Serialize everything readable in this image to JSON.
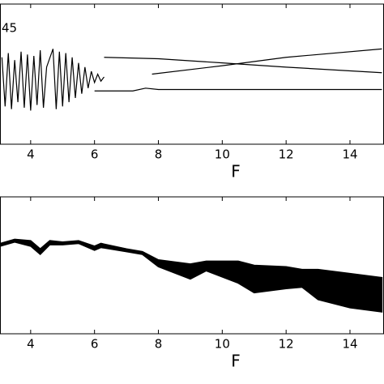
{
  "chart_data": [
    {
      "type": "line",
      "annotation": "45",
      "xlabel": "F",
      "xlim": [
        3.04,
        15.04
      ],
      "xticks": [
        4,
        6,
        8,
        10,
        12,
        14
      ],
      "ylim": [
        0,
        1
      ],
      "series": [
        {
          "color": "#000000",
          "x": [
            3.1,
            3.2,
            3.3,
            3.4,
            3.5,
            3.6,
            3.7,
            3.8,
            3.9,
            4.0,
            4.1,
            4.2,
            4.3,
            4.4,
            4.5,
            4.7,
            4.8,
            4.9,
            5.0,
            5.1,
            5.2,
            5.3,
            5.4,
            5.5,
            5.6,
            5.7,
            5.8,
            5.9,
            6.0,
            6.1,
            6.2,
            6.3
          ],
          "values": [
            0.62,
            0.27,
            0.65,
            0.25,
            0.6,
            0.3,
            0.66,
            0.26,
            0.64,
            0.24,
            0.63,
            0.28,
            0.67,
            0.26,
            0.55,
            0.68,
            0.25,
            0.66,
            0.27,
            0.65,
            0.3,
            0.62,
            0.33,
            0.58,
            0.36,
            0.55,
            0.4,
            0.52,
            0.44,
            0.5,
            0.45,
            0.48
          ]
        },
        {
          "color": "#000000",
          "x": [
            6.3,
            8,
            10,
            12,
            15
          ],
          "values": [
            0.62,
            0.61,
            0.58,
            0.55,
            0.51
          ]
        },
        {
          "color": "#000000",
          "x": [
            7.8,
            10,
            12,
            15
          ],
          "values": [
            0.5,
            0.56,
            0.62,
            0.68
          ]
        },
        {
          "color": "#000000",
          "x": [
            6,
            7.2,
            7.6,
            8,
            15
          ],
          "values": [
            0.38,
            0.38,
            0.4,
            0.39,
            0.39
          ]
        }
      ]
    },
    {
      "type": "area",
      "xlabel": "F",
      "color": "#000000",
      "xlim": [
        3.04,
        15.04
      ],
      "xticks": [
        4,
        6,
        8,
        10,
        12,
        14
      ],
      "ylim": [
        0,
        1
      ],
      "x": [
        3.05,
        3.5,
        4,
        4.3,
        4.6,
        5,
        5.5,
        6,
        6.2,
        7,
        7.5,
        8,
        9,
        9.5,
        10.5,
        11,
        12,
        12.5,
        13,
        14,
        15
      ],
      "upper": [
        0.66,
        0.69,
        0.68,
        0.62,
        0.68,
        0.67,
        0.68,
        0.64,
        0.66,
        0.62,
        0.6,
        0.54,
        0.51,
        0.53,
        0.53,
        0.5,
        0.49,
        0.47,
        0.47,
        0.44,
        0.41
      ],
      "lower": [
        0.64,
        0.67,
        0.64,
        0.58,
        0.65,
        0.65,
        0.66,
        0.61,
        0.63,
        0.6,
        0.58,
        0.49,
        0.4,
        0.46,
        0.37,
        0.3,
        0.33,
        0.34,
        0.25,
        0.19,
        0.16
      ]
    }
  ]
}
